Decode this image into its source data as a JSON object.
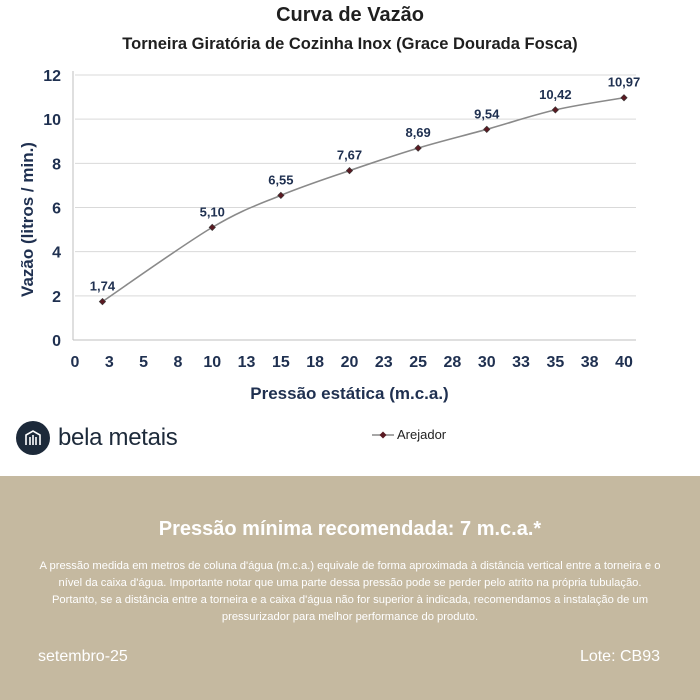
{
  "page": {
    "title": "Curva de Vazão",
    "subtitle": "Torneira Giratória de Cozinha Inox (Grace Dourada Fosca)",
    "brand": "bela metais",
    "headline": "Pressão mínima recomendada: 7 m.c.a.*",
    "note": "A pressão medida em metros de coluna d'água (m.c.a.) equivale de forma aproximada à distância vertical entre a torneira e o nível da caixa d'água. Importante notar que uma parte dessa pressão pode se perder pelo atrito na própria tubulação. Portanto, se a distância entre a torneira e a caixa d'água não for superior à indicada, recomendamos a instalação de um pressurizador para melhor performance do produto.",
    "date": "setembro-25",
    "lote": "Lote: CB93"
  },
  "colors": {
    "panel": "#c5b9a0",
    "line": "#8a8a8a",
    "marker": "#5a1a22",
    "axis_text": "#1f3050",
    "brand": "#1d2a3a"
  },
  "chart_data": {
    "type": "line",
    "title": "Curva de Vazão",
    "subtitle": "Torneira Giratória de Cozinha Inox (Grace Dourada Fosca)",
    "xlabel": "Pressão estática (m.c.a.)",
    "ylabel": "Vazão (litros / min.)",
    "xlim": [
      0,
      40
    ],
    "ylim": [
      0,
      12
    ],
    "x_ticks": [
      "0",
      "3",
      "5",
      "8",
      "10",
      "13",
      "15",
      "18",
      "20",
      "23",
      "25",
      "28",
      "30",
      "33",
      "35",
      "38",
      "40"
    ],
    "y_ticks": [
      0,
      2,
      4,
      6,
      8,
      10,
      12
    ],
    "grid": "horizontal",
    "legend": "bottom",
    "series": [
      {
        "name": "Arejador",
        "x": [
          2,
          10,
          15,
          20,
          25,
          30,
          35,
          40
        ],
        "values": [
          1.74,
          5.1,
          6.55,
          7.67,
          8.69,
          9.54,
          10.42,
          10.97
        ],
        "labels": [
          "1,74",
          "5,10",
          "6,55",
          "7,67",
          "8,69",
          "9,54",
          "10,42",
          "10,97"
        ]
      }
    ]
  }
}
